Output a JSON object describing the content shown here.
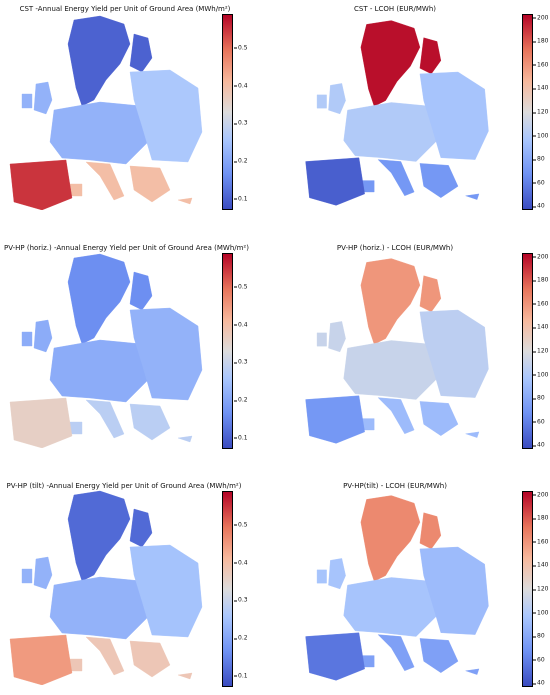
{
  "chart_data": [
    {
      "type": "heatmap",
      "title": "CST -Annual Energy Yield per Unit of Ground Area (MWh/m²)",
      "colormap": "coolwarm",
      "colorbar": {
        "ticks": [
          "0.1",
          "0.2",
          "0.3",
          "0.4",
          "0.5"
        ],
        "range": [
          0.07,
          0.59
        ]
      },
      "regions": [
        {
          "region": "north",
          "value": 0.1
        },
        {
          "region": "central",
          "value": 0.22
        },
        {
          "region": "east",
          "value": 0.26
        },
        {
          "region": "south",
          "value": 0.4
        },
        {
          "region": "iberia",
          "value": 0.55
        }
      ]
    },
    {
      "type": "heatmap",
      "title": "CST - LCOH (EUR/MWh)",
      "colormap": "coolwarm",
      "colorbar": {
        "ticks": [
          "40",
          "60",
          "80",
          "100",
          "120",
          "140",
          "160",
          "180",
          "200"
        ],
        "range": [
          37,
          203
        ]
      },
      "regions": [
        {
          "region": "north",
          "value": 200
        },
        {
          "region": "central",
          "value": 100
        },
        {
          "region": "east",
          "value": 95
        },
        {
          "region": "south",
          "value": 70
        },
        {
          "region": "iberia",
          "value": 45
        }
      ]
    },
    {
      "type": "heatmap",
      "title": "PV-HP (horiz.) -Annual Energy Yield per Unit of Ground Area (MWh/m²)",
      "colormap": "coolwarm",
      "colorbar": {
        "ticks": [
          "0.1",
          "0.2",
          "0.3",
          "0.4",
          "0.5"
        ],
        "range": [
          0.07,
          0.59
        ]
      },
      "regions": [
        {
          "region": "north",
          "value": 0.16
        },
        {
          "region": "central",
          "value": 0.21
        },
        {
          "region": "east",
          "value": 0.22
        },
        {
          "region": "south",
          "value": 0.28
        },
        {
          "region": "iberia",
          "value": 0.36
        }
      ]
    },
    {
      "type": "heatmap",
      "title": "PV-HP (horiz.) - LCOH (EUR/MWh)",
      "colormap": "coolwarm",
      "colorbar": {
        "ticks": [
          "40",
          "60",
          "80",
          "100",
          "120",
          "140",
          "160",
          "180",
          "200"
        ],
        "range": [
          37,
          203
        ]
      },
      "regions": [
        {
          "region": "north",
          "value": 160
        },
        {
          "region": "central",
          "value": 110
        },
        {
          "region": "east",
          "value": 105
        },
        {
          "region": "south",
          "value": 90
        },
        {
          "region": "iberia",
          "value": 70
        }
      ]
    },
    {
      "type": "heatmap",
      "title": "PV-HP (tilt) -Annual Energy Yield per Unit of Ground Area (MWh/m²)",
      "colormap": "coolwarm",
      "colorbar": {
        "ticks": [
          "0.1",
          "0.2",
          "0.3",
          "0.4",
          "0.5"
        ],
        "range": [
          0.07,
          0.59
        ]
      },
      "regions": [
        {
          "region": "north",
          "value": 0.11
        },
        {
          "region": "central",
          "value": 0.22
        },
        {
          "region": "east",
          "value": 0.25
        },
        {
          "region": "south",
          "value": 0.38
        },
        {
          "region": "iberia",
          "value": 0.45
        }
      ]
    },
    {
      "type": "heatmap",
      "title": "PV-HP(tilt) - LCOH (EUR/MWh)",
      "colormap": "coolwarm",
      "colorbar": {
        "ticks": [
          "40",
          "60",
          "80",
          "100",
          "120",
          "140",
          "160",
          "180",
          "200"
        ],
        "range": [
          37,
          203
        ]
      },
      "regions": [
        {
          "region": "north",
          "value": 165
        },
        {
          "region": "central",
          "value": 95
        },
        {
          "region": "east",
          "value": 90
        },
        {
          "region": "south",
          "value": 75
        },
        {
          "region": "iberia",
          "value": 55
        }
      ]
    }
  ]
}
